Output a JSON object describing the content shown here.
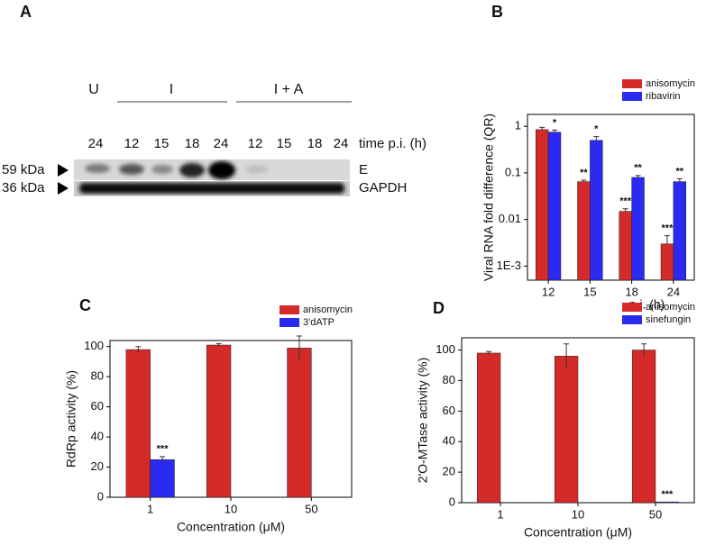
{
  "blot": {
    "panel": "A",
    "groups": [
      "U",
      "I",
      "I + A"
    ],
    "lanes": [
      "24",
      "12",
      "15",
      "18",
      "24",
      "12",
      "15",
      "18",
      "24"
    ],
    "time_label": "time p.i. (h)",
    "rows": [
      {
        "size": "59 kDa",
        "name": "E"
      },
      {
        "size": "36 kDa",
        "name": "GAPDH"
      }
    ]
  },
  "chart_data": [
    {
      "panel": "B",
      "type": "bar",
      "ylabel": "Viral RNA fold difference (QR)",
      "xlabel": "p.i. (h)",
      "categories": [
        "12",
        "15",
        "18",
        "24"
      ],
      "log_y": true,
      "ylim": [
        0.0005,
        1.8
      ],
      "yticks": [
        {
          "value": 0.001,
          "label": "1E-3"
        },
        0.01,
        0.1,
        1
      ],
      "legend": "top right",
      "series": [
        {
          "name": "anisomycin",
          "color": "#d42a2a",
          "values": [
            0.85,
            0.065,
            0.015,
            0.003
          ],
          "errors": [
            0.1,
            0.005,
            0.002,
            0.0015
          ],
          "significance": [
            null,
            "**",
            "***",
            "***"
          ]
        },
        {
          "name": "ribavirin",
          "color": "#2a2af0",
          "values": [
            0.75,
            0.5,
            0.08,
            0.065
          ],
          "errors": [
            0.08,
            0.1,
            0.008,
            0.01
          ],
          "significance": [
            "*",
            "*",
            "**",
            "**"
          ]
        }
      ]
    },
    {
      "panel": "C",
      "type": "bar",
      "ylabel": "RdRp activity (%)",
      "xlabel": "Concentration (μM)",
      "categories": [
        "1",
        "10",
        "50"
      ],
      "log_y": false,
      "ylim": [
        0,
        104
      ],
      "yticks": [
        0,
        20,
        40,
        60,
        80,
        100
      ],
      "legend": "top right",
      "series": [
        {
          "name": "anisomycin",
          "color": "#d42a2a",
          "values": [
            98,
            101,
            99
          ],
          "errors": [
            2,
            1,
            8
          ],
          "significance": [
            null,
            null,
            null
          ]
        },
        {
          "name": "3'dATP",
          "color": "#2a2af0",
          "values": [
            25,
            null,
            null
          ],
          "errors": [
            2,
            null,
            null
          ],
          "significance": [
            "***",
            null,
            null
          ]
        }
      ]
    },
    {
      "panel": "D",
      "type": "bar",
      "ylabel": "2'O-MTase activity (%)",
      "xlabel": "Concentration (μM)",
      "categories": [
        "1",
        "10",
        "50"
      ],
      "log_y": false,
      "ylim": [
        0,
        108
      ],
      "yticks": [
        0,
        20,
        40,
        60,
        80,
        100
      ],
      "legend": "top right",
      "series": [
        {
          "name": "anisomycin",
          "color": "#d42a2a",
          "values": [
            98,
            96,
            100
          ],
          "errors": [
            1,
            8,
            4
          ],
          "significance": [
            null,
            null,
            null
          ]
        },
        {
          "name": "sinefungin",
          "color": "#2a2af0",
          "values": [
            null,
            null,
            0.5
          ],
          "errors": [
            null,
            null,
            null
          ],
          "significance": [
            null,
            null,
            "***"
          ]
        }
      ]
    }
  ]
}
